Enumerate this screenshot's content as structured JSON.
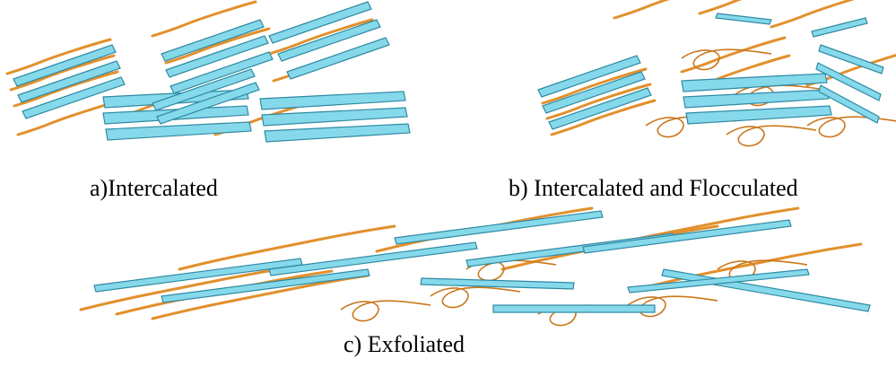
{
  "captions": [
    "a)Intercalated",
    "b) Intercalated and Flocculated",
    "c) Exfoliated"
  ]
}
